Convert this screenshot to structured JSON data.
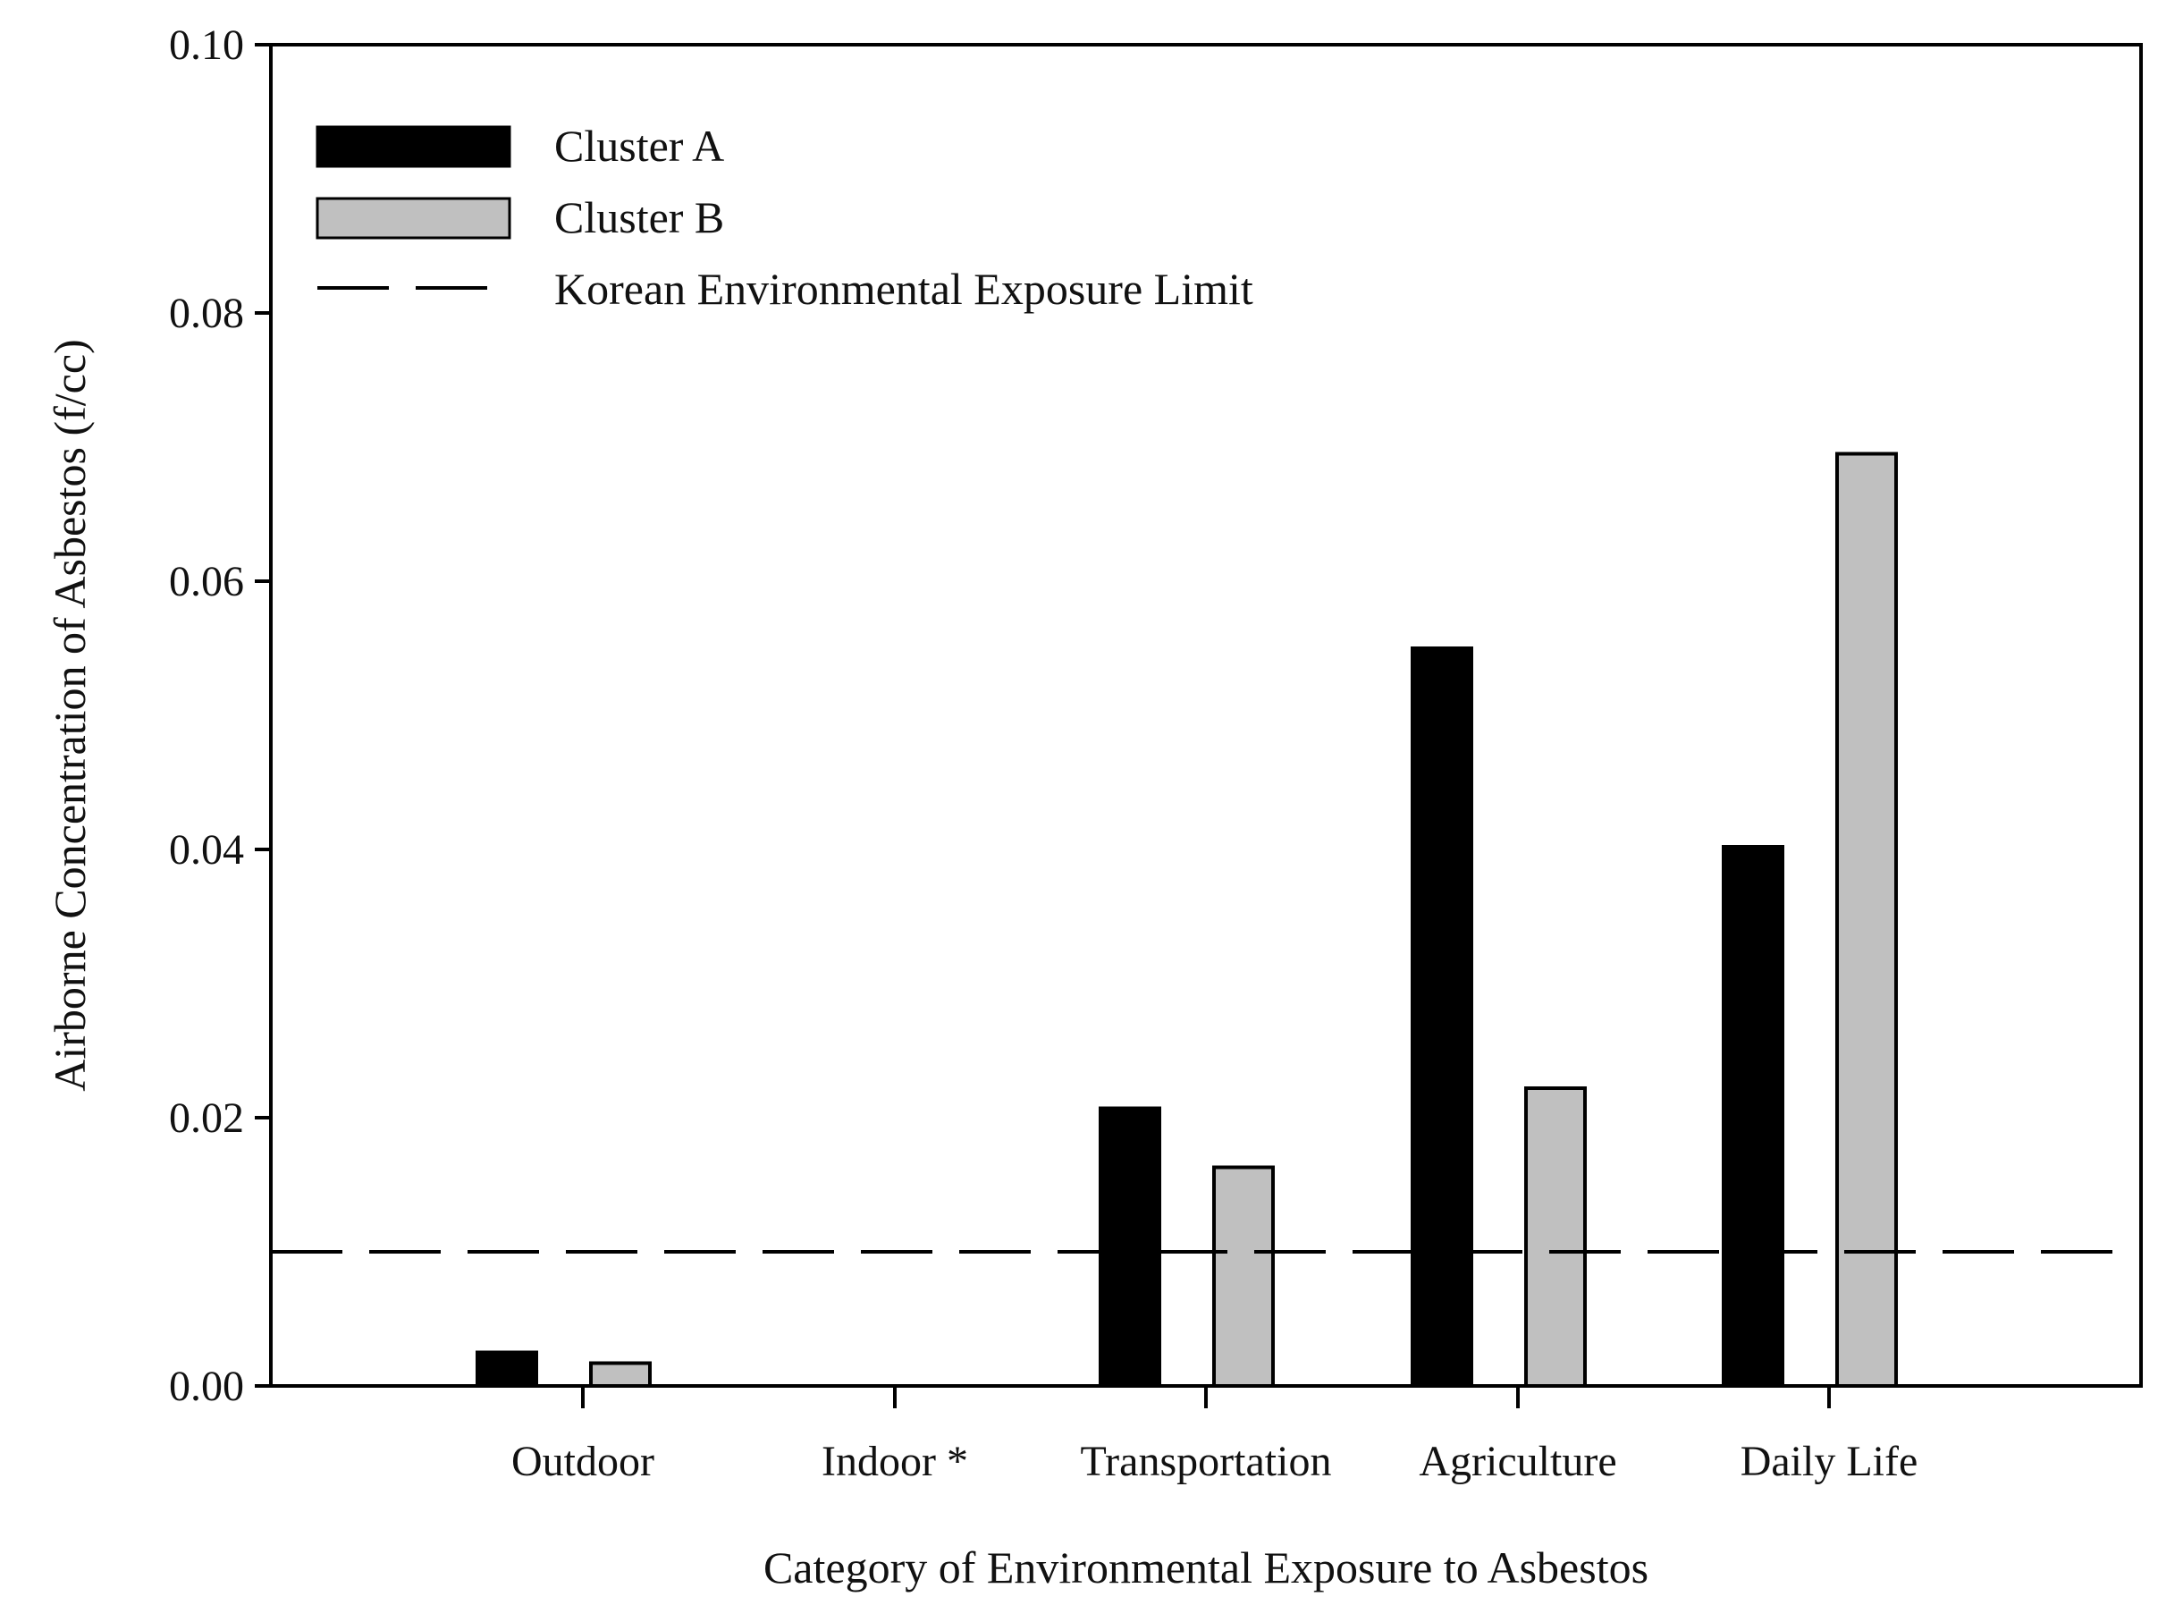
{
  "chart_data": {
    "type": "bar",
    "title": "",
    "xlabel": "Category of Environmental Exposure to Asbestos",
    "ylabel": "Airborne Concentration of Asbestos (f/cc)",
    "categories": [
      "Outdoor",
      "Indoor *",
      "Transportation",
      "Agriculture",
      "Daily Life"
    ],
    "series": [
      {
        "name": "Cluster A",
        "color": "#000000",
        "values": [
          0.0025,
          0,
          0.0207,
          0.055,
          0.0402
        ]
      },
      {
        "name": "Cluster B",
        "color": "#c0c0c0",
        "values": [
          0.0017,
          0,
          0.0163,
          0.0222,
          0.0695
        ]
      }
    ],
    "reference_line": {
      "name": "Korean Environmental Exposure Limit",
      "value": 0.01,
      "style": "dashed",
      "color": "#000000"
    },
    "ylim": [
      0,
      0.1
    ],
    "yticks": [
      "0.00",
      "0.02",
      "0.04",
      "0.06",
      "0.08",
      "0.10"
    ],
    "grid": false,
    "legend": {
      "position": "top-left"
    }
  }
}
